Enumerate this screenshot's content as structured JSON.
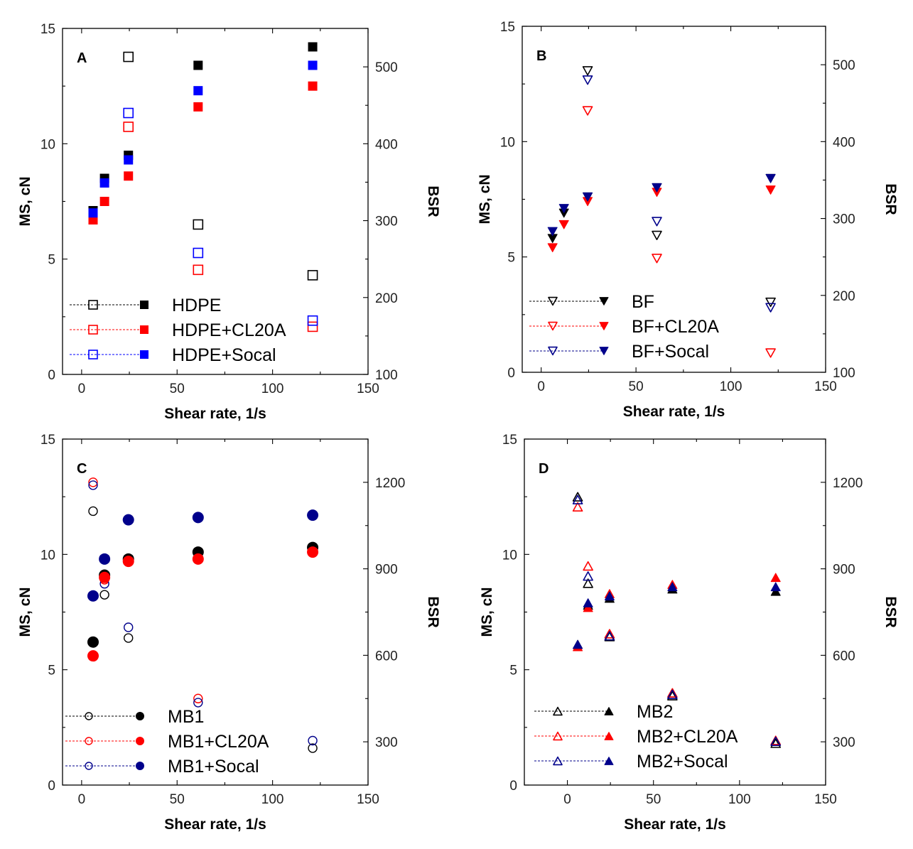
{
  "chart_data": [
    {
      "type": "scatter",
      "panel": "A",
      "xlabel": "Shear rate, 1/s",
      "ylabel": "MS, cN",
      "y2label": "BSR",
      "xlim": [
        -10,
        150
      ],
      "ylim": [
        0,
        15
      ],
      "y2lim": [
        100,
        550
      ],
      "xticks": [
        "0",
        "50",
        "100",
        "150"
      ],
      "yticks": [
        "0",
        "5",
        "10",
        "15"
      ],
      "y2ticks": [
        "100",
        "200",
        "300",
        "400",
        "500"
      ],
      "marker": "square",
      "legend": [
        "HDPE",
        "HDPE+CL20A",
        "HDPE+Socal"
      ],
      "legend_position": "bottom-left",
      "series": [
        {
          "name": "HDPE",
          "color": "#000000",
          "ms": [
            [
              6,
              7.1
            ],
            [
              12,
              8.5
            ],
            [
              24.5,
              9.5
            ],
            [
              61,
              13.4
            ],
            [
              121,
              14.2
            ]
          ],
          "bsr": [
            [
              24.5,
              513
            ],
            [
              61,
              295
            ],
            [
              121,
              229
            ]
          ]
        },
        {
          "name": "HDPE+CL20A",
          "color": "#ff0000",
          "ms": [
            [
              6,
              6.7
            ],
            [
              12,
              7.5
            ],
            [
              24.5,
              8.6
            ],
            [
              61,
              11.6
            ],
            [
              121,
              12.5
            ]
          ],
          "bsr": [
            [
              24.5,
              422
            ],
            [
              61,
              236
            ],
            [
              121,
              162
            ]
          ]
        },
        {
          "name": "HDPE+Socal",
          "color": "#0000ff",
          "ms": [
            [
              6,
              7.0
            ],
            [
              12,
              8.3
            ],
            [
              24.5,
              9.3
            ],
            [
              61,
              12.3
            ],
            [
              121,
              13.4
            ]
          ],
          "bsr": [
            [
              24.5,
              440
            ],
            [
              61,
              258
            ],
            [
              121,
              170
            ]
          ]
        }
      ]
    },
    {
      "type": "scatter",
      "panel": "B",
      "xlabel": "Shear rate, 1/s",
      "ylabel": "MS, cN",
      "y2label": "BSR",
      "xlim": [
        -10,
        150
      ],
      "ylim": [
        0,
        15
      ],
      "y2lim": [
        100,
        550
      ],
      "xticks": [
        "0",
        "50",
        "100",
        "150"
      ],
      "yticks": [
        "0",
        "5",
        "10",
        "15"
      ],
      "y2ticks": [
        "100",
        "200",
        "300",
        "400",
        "500"
      ],
      "marker": "triangle-down",
      "legend": [
        "BF",
        "BF+CL20A",
        "BF+Socal"
      ],
      "legend_position": "bottom-left",
      "series": [
        {
          "name": "BF",
          "color": "#000000",
          "ms": [
            [
              6,
              5.8
            ],
            [
              12,
              6.9
            ],
            [
              24.5,
              7.6
            ],
            [
              61,
              8.0
            ],
            [
              121,
              8.4
            ]
          ],
          "bsr": [
            [
              24.5,
              492
            ],
            [
              61,
              278
            ],
            [
              121,
              191
            ]
          ]
        },
        {
          "name": "BF+CL20A",
          "color": "#ff0000",
          "ms": [
            [
              6,
              5.4
            ],
            [
              12,
              6.4
            ],
            [
              24.5,
              7.4
            ],
            [
              61,
              7.8
            ],
            [
              121,
              7.9
            ]
          ],
          "bsr": [
            [
              24.5,
              440
            ],
            [
              61,
              248
            ],
            [
              121,
              125
            ]
          ]
        },
        {
          "name": "BF+Socal",
          "color": "#00008b",
          "ms": [
            [
              6,
              6.1
            ],
            [
              12,
              7.1
            ],
            [
              24.5,
              7.6
            ],
            [
              61,
              8.0
            ],
            [
              121,
              8.4
            ]
          ],
          "bsr": [
            [
              24.5,
              480
            ],
            [
              61,
              296
            ],
            [
              121,
              184
            ]
          ]
        }
      ]
    },
    {
      "type": "scatter",
      "panel": "C",
      "xlabel": "Shear rate, 1/s",
      "ylabel": "MS, cN",
      "y2label": "BSR",
      "xlim": [
        -10,
        150
      ],
      "ylim": [
        0,
        15
      ],
      "y2lim": [
        150,
        1350
      ],
      "xticks": [
        "0",
        "50",
        "100",
        "150"
      ],
      "yticks": [
        "0",
        "5",
        "10",
        "15"
      ],
      "y2ticks": [
        "300",
        "600",
        "900",
        "1200"
      ],
      "marker": "circle",
      "legend": [
        "MB1",
        "MB1+CL20A",
        "MB1+Socal"
      ],
      "legend_position": "bottom-left",
      "series": [
        {
          "name": "MB1",
          "color": "#000000",
          "ms": [
            [
              6,
              6.2
            ],
            [
              12,
              9.1
            ],
            [
              24.5,
              9.8
            ],
            [
              61,
              10.1
            ],
            [
              121,
              10.3
            ]
          ],
          "bsr": [
            [
              6,
              1100
            ],
            [
              12,
              810
            ],
            [
              24.5,
              660
            ],
            [
              121,
              278
            ]
          ]
        },
        {
          "name": "MB1+CL20A",
          "color": "#ff0000",
          "ms": [
            [
              6,
              5.6
            ],
            [
              12,
              9.0
            ],
            [
              24.5,
              9.7
            ],
            [
              61,
              9.8
            ],
            [
              121,
              10.1
            ]
          ],
          "bsr": [
            [
              6,
              1200
            ],
            [
              12,
              862
            ],
            [
              61,
              450
            ]
          ]
        },
        {
          "name": "MB1+Socal",
          "color": "#00008b",
          "ms": [
            [
              6,
              8.2
            ],
            [
              12,
              9.8
            ],
            [
              24.5,
              11.5
            ],
            [
              61,
              11.6
            ],
            [
              121,
              11.7
            ]
          ],
          "bsr": [
            [
              6,
              1190
            ],
            [
              12,
              848
            ],
            [
              24.5,
              697
            ],
            [
              61,
              436
            ],
            [
              121,
              304
            ]
          ]
        }
      ]
    },
    {
      "type": "scatter",
      "panel": "D",
      "xlabel": "Shear rate, 1/s",
      "ylabel": "MS, cN",
      "y2label": "BSR",
      "xlim": [
        -25,
        150
      ],
      "ylim": [
        0,
        15
      ],
      "y2lim": [
        150,
        1350
      ],
      "xticks": [
        "0",
        "50",
        "100",
        "150"
      ],
      "yticks": [
        "0",
        "5",
        "10",
        "15"
      ],
      "y2ticks": [
        "300",
        "600",
        "900",
        "1200"
      ],
      "marker": "triangle-up",
      "legend": [
        "MB2",
        "MB2+CL20A",
        "MB2+Socal"
      ],
      "legend_position": "bottom-left",
      "series": [
        {
          "name": "MB2",
          "color": "#000000",
          "ms": [
            [
              6,
              6.1
            ],
            [
              12,
              7.8
            ],
            [
              24.5,
              8.1
            ],
            [
              61,
              8.5
            ],
            [
              121,
              8.4
            ]
          ],
          "bsr": [
            [
              6,
              1150
            ],
            [
              12,
              850
            ],
            [
              24.5,
              665
            ],
            [
              61,
              460
            ],
            [
              121,
              295
            ]
          ]
        },
        {
          "name": "MB2+CL20A",
          "color": "#ff0000",
          "ms": [
            [
              6,
              6.0
            ],
            [
              12,
              7.7
            ],
            [
              24.5,
              8.3
            ],
            [
              61,
              8.7
            ],
            [
              121,
              9.0
            ]
          ],
          "bsr": [
            [
              6,
              1115
            ],
            [
              12,
              910
            ],
            [
              24.5,
              675
            ],
            [
              61,
              470
            ],
            [
              121,
              305
            ]
          ]
        },
        {
          "name": "MB2+Socal",
          "color": "#00008b",
          "ms": [
            [
              6,
              6.1
            ],
            [
              12,
              7.9
            ],
            [
              24.5,
              8.2
            ],
            [
              61,
              8.6
            ],
            [
              121,
              8.6
            ]
          ],
          "bsr": [
            [
              6,
              1140
            ],
            [
              12,
              875
            ],
            [
              24.5,
              668
            ],
            [
              61,
              465
            ],
            [
              121,
              302
            ]
          ]
        }
      ]
    }
  ]
}
